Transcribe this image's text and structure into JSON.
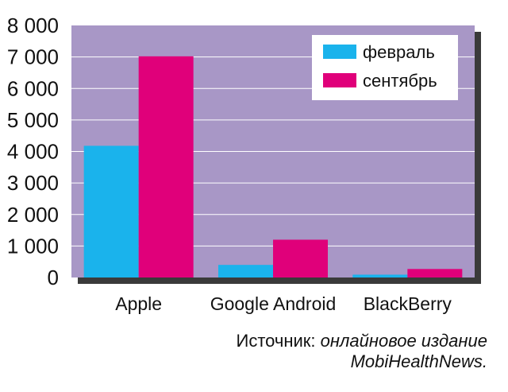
{
  "chart_data": {
    "type": "bar",
    "categories": [
      "Apple",
      "Google Android",
      "BlackBerry"
    ],
    "series": [
      {
        "name": "февраль",
        "values": [
          4180,
          400,
          90
        ],
        "color": "#1ab3ec"
      },
      {
        "name": "сентябрь",
        "values": [
          7020,
          1200,
          270
        ],
        "color": "#e0007a"
      }
    ],
    "y_ticks": [
      0,
      1000,
      2000,
      3000,
      4000,
      5000,
      6000,
      7000,
      8000
    ],
    "y_tick_labels": [
      "0",
      "1 000",
      "2 000",
      "3 000",
      "4 000",
      "5 000",
      "6 000",
      "7 000",
      "8 000"
    ],
    "ylim": [
      0,
      8000
    ],
    "grid": true,
    "legend_position": "top-right",
    "plot_background": "#a897c6"
  },
  "source": {
    "prefix": "Источник: ",
    "line1_italic": "онлайновое издание",
    "line2_italic": "MobiHealthNews."
  }
}
